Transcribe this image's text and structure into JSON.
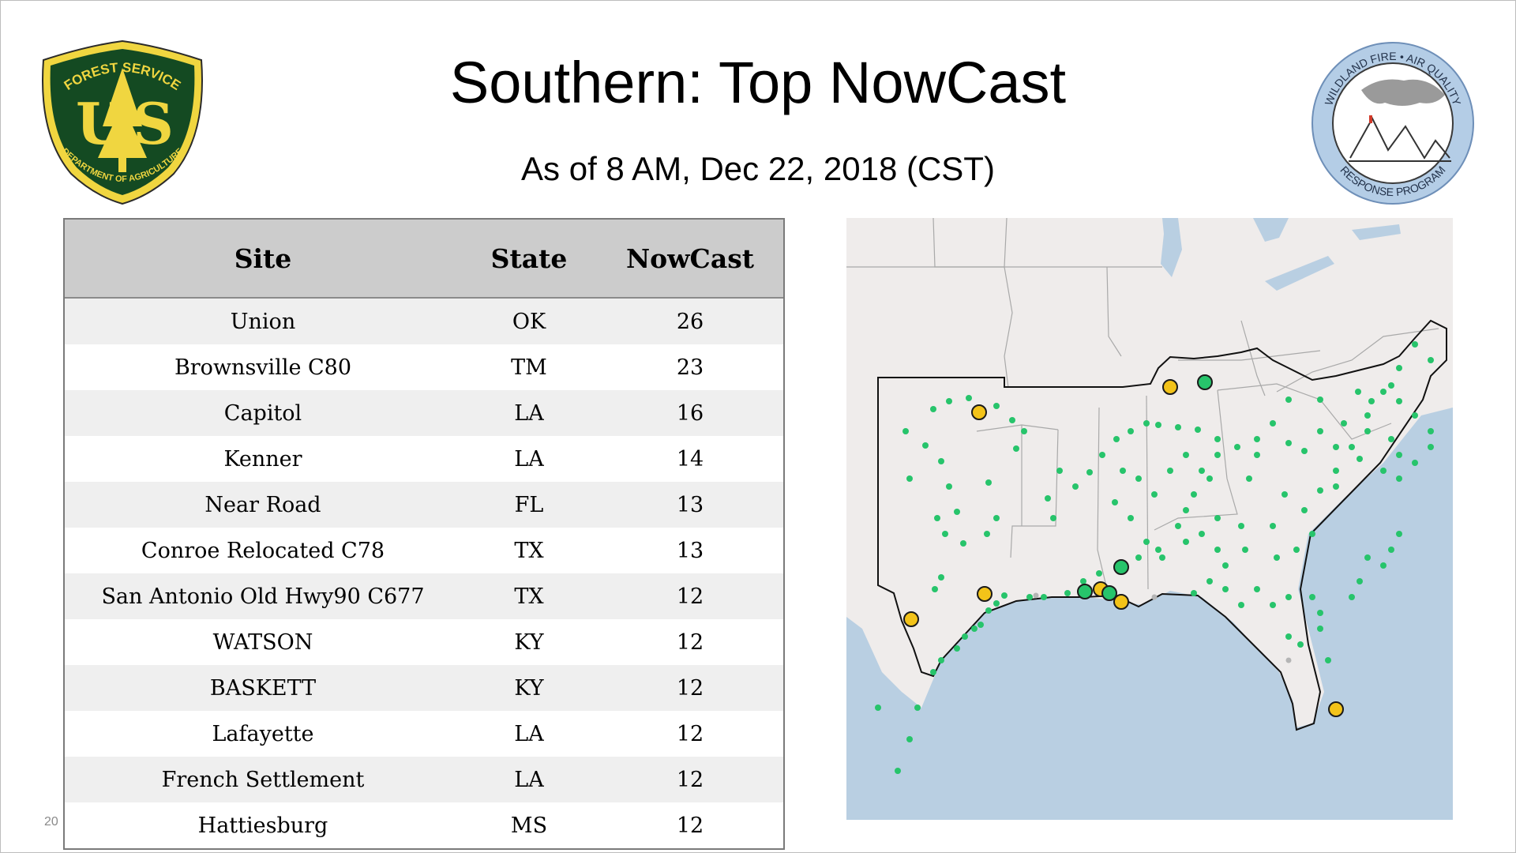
{
  "title": "Southern: Top NowCast",
  "subtitle": "As of  8 AM, Dec 22, 2018 (CST)",
  "page_number": "20",
  "logos": {
    "usfs_text_top": "FOREST SERVICE",
    "usfs_text_bottom": "DEPARTMENT OF AGRICULTURE",
    "usfs_letters_left": "U",
    "usfs_letters_right": "S",
    "wfaq_text_top": "WILDLAND FIRE • AIR QUALITY",
    "wfaq_text_bottom": "RESPONSE PROGRAM"
  },
  "table": {
    "headers": [
      "Site",
      "State",
      "NowCast"
    ],
    "rows": [
      {
        "site": "Union",
        "state": "OK",
        "nowcast": "26"
      },
      {
        "site": "Brownsville C80",
        "state": "TM",
        "nowcast": "23"
      },
      {
        "site": "Capitol",
        "state": "LA",
        "nowcast": "16"
      },
      {
        "site": "Kenner",
        "state": "LA",
        "nowcast": "14"
      },
      {
        "site": "Near Road",
        "state": "FL",
        "nowcast": "13"
      },
      {
        "site": "Conroe Relocated C78",
        "state": "TX",
        "nowcast": "13"
      },
      {
        "site": "San Antonio Old Hwy90 C677",
        "state": "TX",
        "nowcast": "12"
      },
      {
        "site": "WATSON",
        "state": "KY",
        "nowcast": "12"
      },
      {
        "site": "BASKETT",
        "state": "KY",
        "nowcast": "12"
      },
      {
        "site": "Lafayette",
        "state": "LA",
        "nowcast": "12"
      },
      {
        "site": "French Settlement",
        "state": "LA",
        "nowcast": "12"
      },
      {
        "site": "Hattiesburg",
        "state": "MS",
        "nowcast": "12"
      }
    ]
  },
  "map": {
    "colors": {
      "good": "#27c46b",
      "moderate": "#f3c319",
      "land": "#efeceb",
      "water": "#b9cfe2",
      "border": "#a9a9a9",
      "region": "#111111"
    }
  }
}
